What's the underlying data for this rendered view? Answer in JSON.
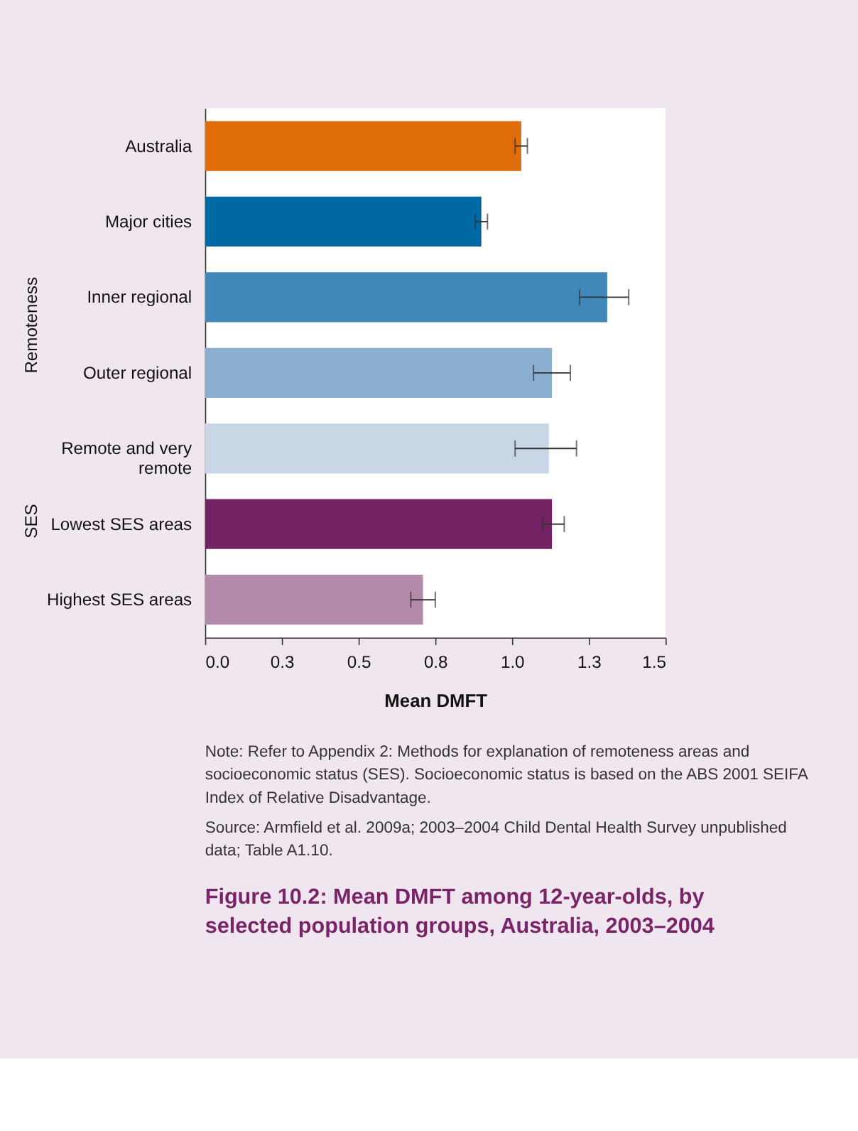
{
  "chart_data": {
    "type": "bar",
    "orientation": "horizontal",
    "title": "Figure 10.2: Mean DMFT among 12-year-olds, by selected population groups, Australia, 2003–2004",
    "xlabel": "Mean DMFT",
    "categories": [
      "Australia",
      "Major cities",
      "Inner regional",
      "Outer regional",
      "Remote and very\nremote",
      "Lowest SES areas",
      "Highest SES areas"
    ],
    "values": [
      1.03,
      0.9,
      1.31,
      1.13,
      1.12,
      1.13,
      0.71
    ],
    "colors": [
      "#e06c0a",
      "#0069a3",
      "#3f88b8",
      "#8aafcf",
      "#c8d6e6",
      "#732363",
      "#b48aaa"
    ],
    "errors": [
      [
        1.01,
        1.05
      ],
      [
        0.88,
        0.92
      ],
      [
        1.22,
        1.38
      ],
      [
        1.07,
        1.19
      ],
      [
        1.01,
        1.21
      ],
      [
        1.1,
        1.17
      ],
      [
        0.67,
        0.75
      ]
    ],
    "xlim": [
      0,
      1.5
    ],
    "xticks": [
      {
        "value": 0,
        "label": "0.0"
      },
      {
        "value": 0.25,
        "label": "0.3"
      },
      {
        "value": 0.5,
        "label": "0.5"
      },
      {
        "value": 0.75,
        "label": "0.8"
      },
      {
        "value": 1.0,
        "label": "1.0"
      },
      {
        "value": 1.25,
        "label": "1.3"
      },
      {
        "value": 1.5,
        "label": "1.5"
      }
    ],
    "grid": false,
    "annotations": [
      "Remoteness",
      "SES",
      "Note: Refer to Appendix 2: Methods for explanation of remoteness areas and socioeconomic status (SES). Socioeconomic status is based on the ABS 2001 SEIFA Index of Relative Disadvantage.",
      "Source: Armfield et al. 2009a; 2003–2004 Child Dental Health Survey unpublished data; Table A1.10."
    ]
  }
}
